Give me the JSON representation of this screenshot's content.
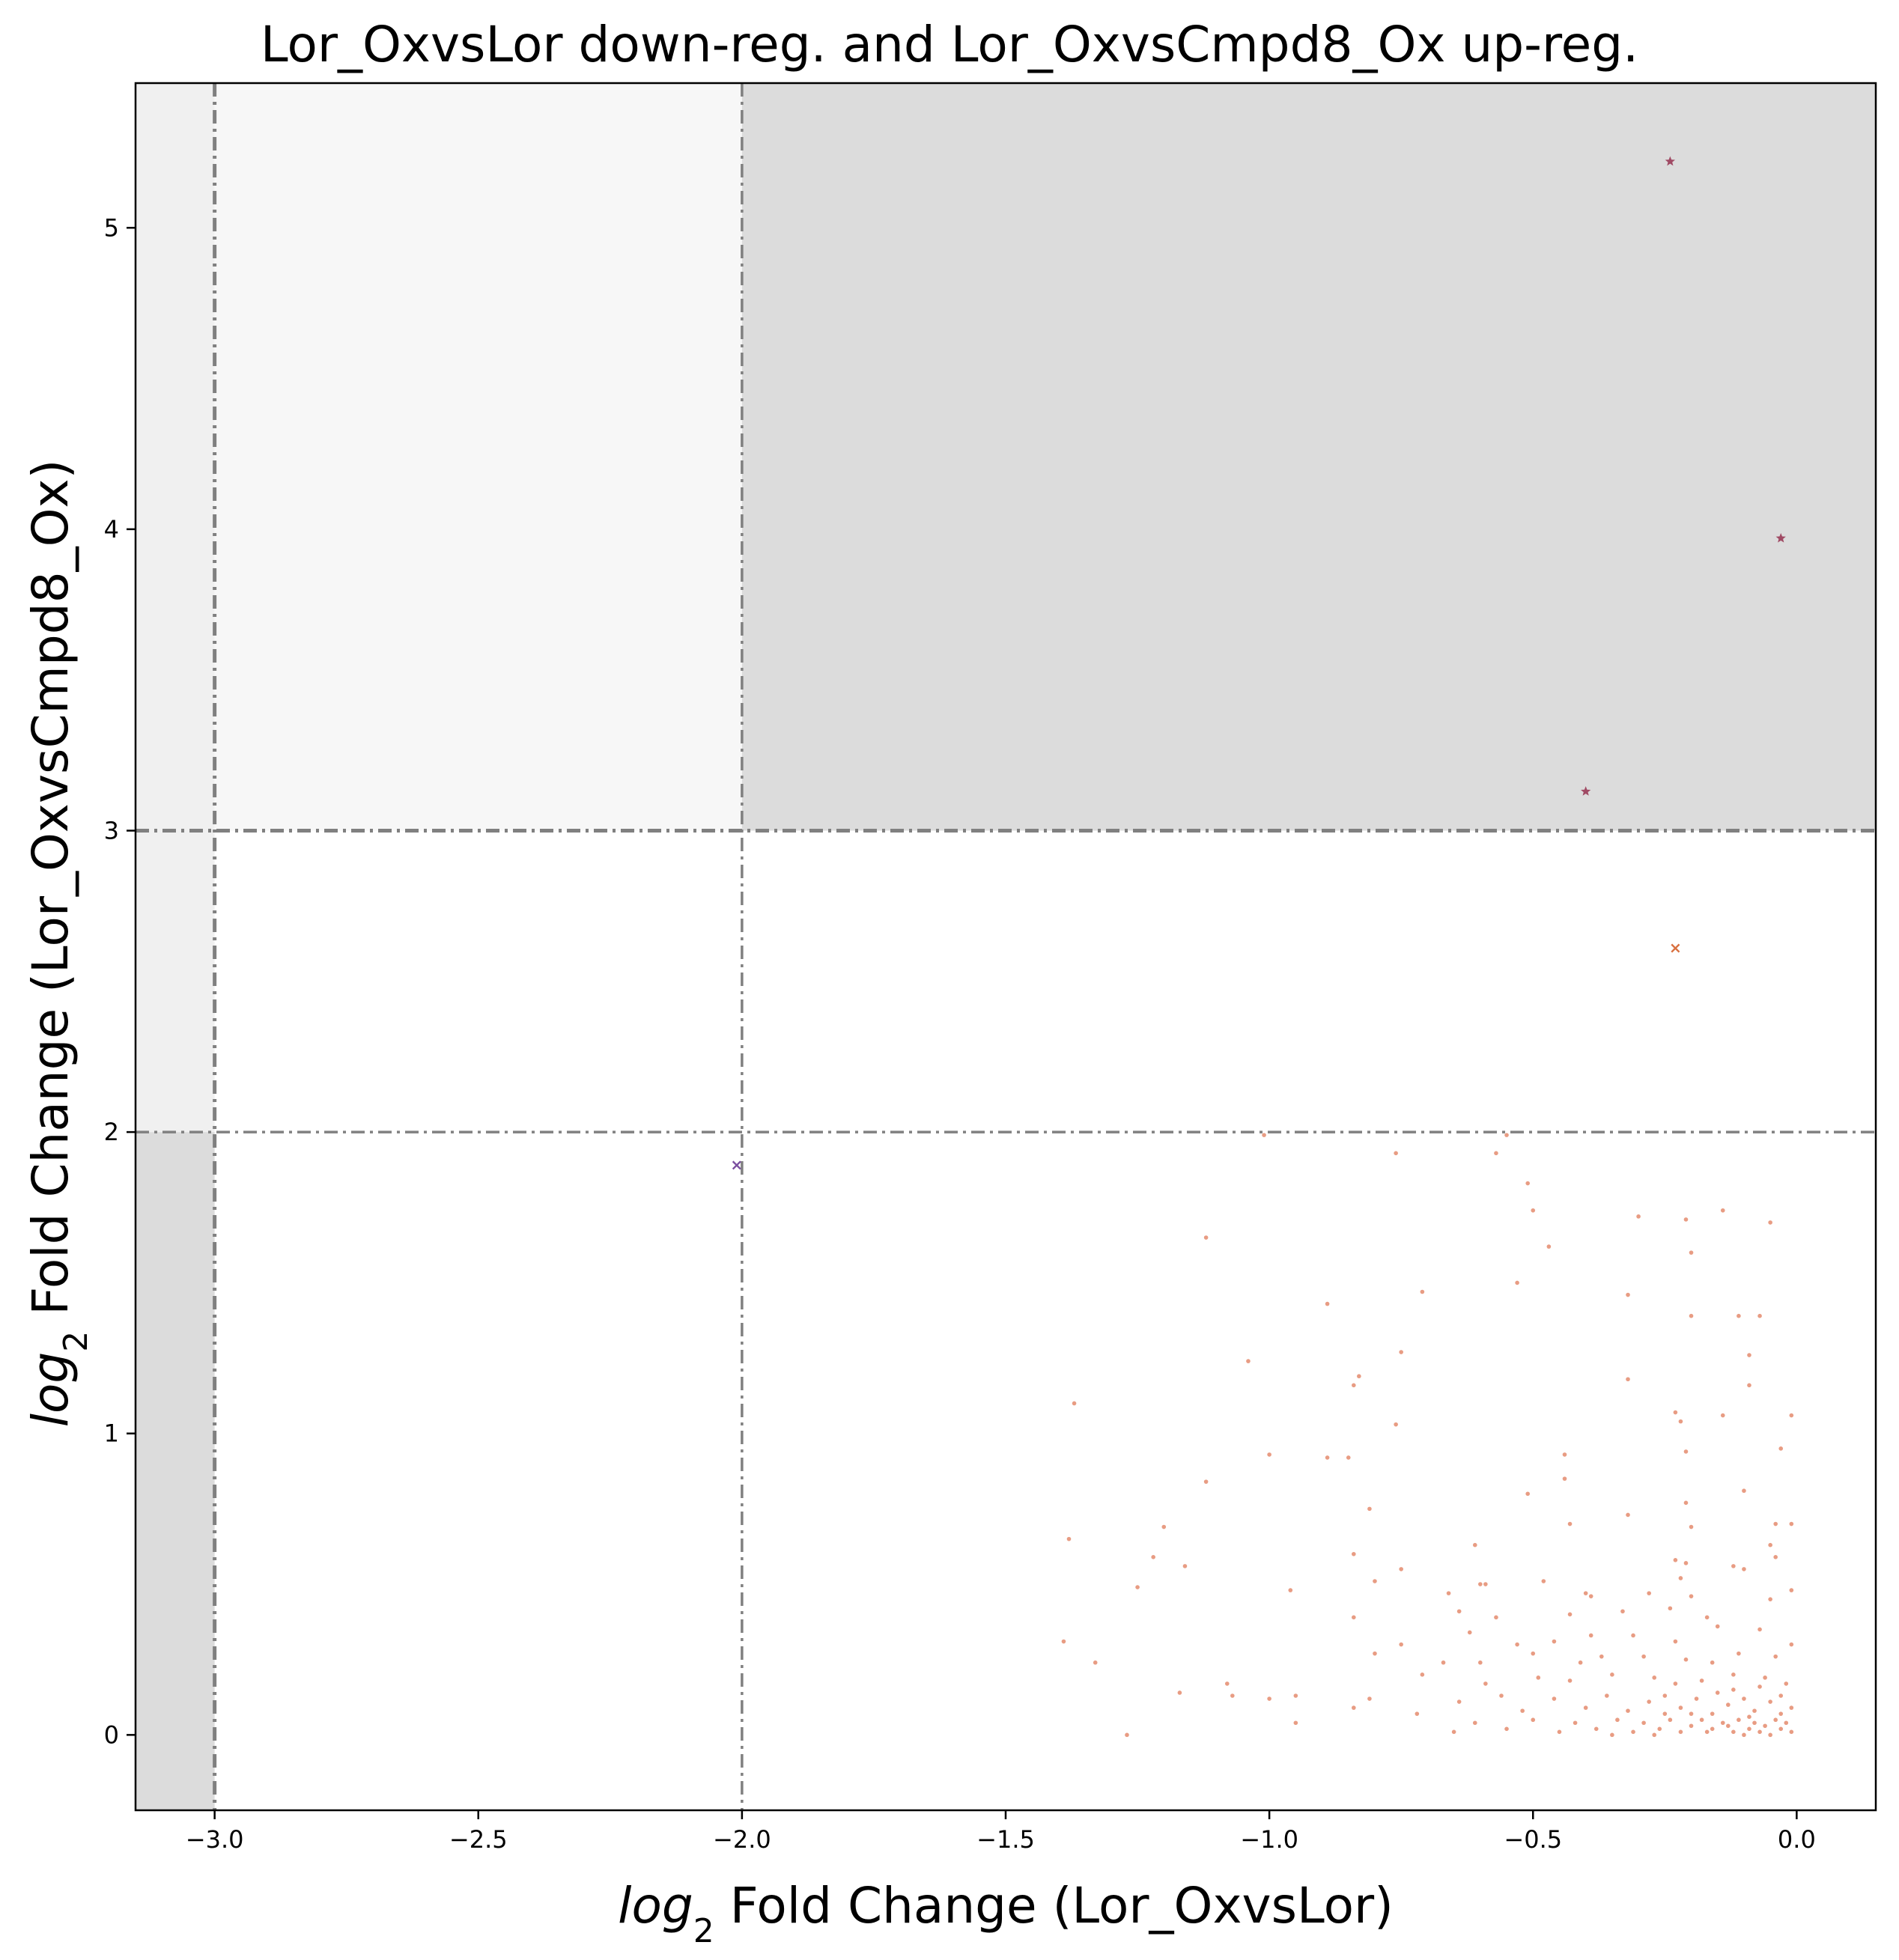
{
  "chart_data": {
    "type": "scatter",
    "title": "Lor_OxvsLor down-reg. and Lor_OxvsCmpd8_Ox up-reg.",
    "xlabel": {
      "prefix": "log",
      "sub": "2",
      "rest": " Fold Change (Lor_OxvsLor)"
    },
    "ylabel": {
      "prefix": "log",
      "sub": "2",
      "rest": " Fold Change (Lor_OxvsCmpd8_Ox)"
    },
    "xlim": [
      -3.15,
      0.15
    ],
    "ylim": [
      -0.25,
      5.48
    ],
    "x_ticks": [
      -3.0,
      -2.5,
      -2.0,
      -1.5,
      -1.0,
      -0.5,
      0.0
    ],
    "x_tick_labels": [
      "−3.0",
      "−2.5",
      "−2.0",
      "−1.5",
      "−1.0",
      "−0.5",
      "0.0"
    ],
    "y_ticks": [
      0,
      1,
      2,
      3,
      4,
      5
    ],
    "y_tick_labels": [
      "0",
      "1",
      "2",
      "3",
      "4",
      "5"
    ],
    "grid": false,
    "legend": "none",
    "threshold_lines": {
      "x": [
        -3.0,
        -2.0
      ],
      "y": [
        2.0,
        3.0
      ]
    },
    "regions": [
      {
        "x": [
          -3.15,
          -3.0
        ],
        "y": [
          -0.25,
          2.0
        ],
        "color": "#dcdcdc"
      },
      {
        "x": [
          -3.15,
          -3.0
        ],
        "y": [
          2.0,
          5.48
        ],
        "color": "#f0f0f0"
      },
      {
        "x": [
          -3.0,
          -2.0
        ],
        "y": [
          3.0,
          5.48
        ],
        "color": "#f7f7f7"
      },
      {
        "x": [
          -2.0,
          0.15
        ],
        "y": [
          3.0,
          5.48
        ],
        "color": "#dcdcdc"
      }
    ],
    "colors": {
      "dots": "#e07b5a",
      "stars": "#a04a64",
      "cross_orange": "#d9703f",
      "cross_purple": "#7b4fa0",
      "lines": "#808080"
    },
    "series": [
      {
        "marker": "star",
        "color": "#a04a64",
        "points": [
          [
            -0.24,
            5.22
          ],
          [
            -0.03,
            3.97
          ],
          [
            -0.4,
            3.13
          ]
        ]
      },
      {
        "marker": "x",
        "color": "#d9703f",
        "points": [
          [
            -0.23,
            2.61
          ]
        ]
      },
      {
        "marker": "x",
        "color": "#7b4fa0",
        "points": [
          [
            -2.01,
            1.89
          ]
        ]
      },
      {
        "marker": "dot",
        "color": "#e07b5a",
        "points": [
          [
            -1.01,
            1.99
          ],
          [
            -0.55,
            1.99
          ],
          [
            -0.76,
            1.93
          ],
          [
            -0.57,
            1.93
          ],
          [
            -0.51,
            1.83
          ],
          [
            -0.5,
            1.74
          ],
          [
            -0.3,
            1.72
          ],
          [
            -0.21,
            1.71
          ],
          [
            -0.14,
            1.74
          ],
          [
            -0.05,
            1.7
          ],
          [
            -1.12,
            1.65
          ],
          [
            -0.47,
            1.62
          ],
          [
            -0.2,
            1.6
          ],
          [
            -0.53,
            1.5
          ],
          [
            -0.71,
            1.47
          ],
          [
            -0.32,
            1.46
          ],
          [
            -0.89,
            1.43
          ],
          [
            -0.2,
            1.39
          ],
          [
            -0.11,
            1.39
          ],
          [
            -0.07,
            1.39
          ],
          [
            -0.75,
            1.27
          ],
          [
            -0.09,
            1.26
          ],
          [
            -1.04,
            1.24
          ],
          [
            -0.83,
            1.19
          ],
          [
            -0.84,
            1.16
          ],
          [
            -0.32,
            1.18
          ],
          [
            -0.09,
            1.16
          ],
          [
            -1.37,
            1.1
          ],
          [
            -0.23,
            1.07
          ],
          [
            -0.14,
            1.06
          ],
          [
            -0.22,
            1.04
          ],
          [
            -0.01,
            1.06
          ],
          [
            -0.76,
            1.03
          ],
          [
            -1.0,
            0.93
          ],
          [
            -0.89,
            0.92
          ],
          [
            -0.85,
            0.92
          ],
          [
            -0.44,
            0.93
          ],
          [
            -0.21,
            0.94
          ],
          [
            -0.03,
            0.95
          ],
          [
            -1.12,
            0.84
          ],
          [
            -0.44,
            0.85
          ],
          [
            -0.51,
            0.8
          ],
          [
            -0.1,
            0.81
          ],
          [
            -0.81,
            0.75
          ],
          [
            -0.21,
            0.77
          ],
          [
            -0.32,
            0.73
          ],
          [
            -1.2,
            0.69
          ],
          [
            -0.43,
            0.7
          ],
          [
            -0.2,
            0.69
          ],
          [
            -0.04,
            0.7
          ],
          [
            -0.01,
            0.7
          ],
          [
            -1.38,
            0.65
          ],
          [
            -0.61,
            0.63
          ],
          [
            -0.05,
            0.63
          ],
          [
            -0.04,
            0.59
          ],
          [
            -1.22,
            0.59
          ],
          [
            -0.84,
            0.6
          ],
          [
            -0.23,
            0.58
          ],
          [
            -0.21,
            0.57
          ],
          [
            -1.16,
            0.56
          ],
          [
            -0.75,
            0.55
          ],
          [
            -0.12,
            0.56
          ],
          [
            -0.1,
            0.55
          ],
          [
            -0.6,
            0.5
          ],
          [
            -0.59,
            0.5
          ],
          [
            -0.48,
            0.51
          ],
          [
            -0.22,
            0.52
          ],
          [
            -1.25,
            0.49
          ],
          [
            -0.96,
            0.48
          ],
          [
            -0.8,
            0.51
          ],
          [
            -0.66,
            0.47
          ],
          [
            -0.4,
            0.47
          ],
          [
            -0.39,
            0.46
          ],
          [
            -0.28,
            0.47
          ],
          [
            -0.2,
            0.46
          ],
          [
            -0.05,
            0.45
          ],
          [
            -0.01,
            0.48
          ],
          [
            -0.84,
            0.39
          ],
          [
            -0.64,
            0.41
          ],
          [
            -0.57,
            0.39
          ],
          [
            -0.43,
            0.4
          ],
          [
            -0.33,
            0.41
          ],
          [
            -0.24,
            0.42
          ],
          [
            -0.17,
            0.39
          ],
          [
            -1.39,
            0.31
          ],
          [
            -0.75,
            0.3
          ],
          [
            -0.62,
            0.34
          ],
          [
            -0.53,
            0.3
          ],
          [
            -0.46,
            0.31
          ],
          [
            -0.39,
            0.33
          ],
          [
            -0.31,
            0.33
          ],
          [
            -0.23,
            0.31
          ],
          [
            -0.15,
            0.36
          ],
          [
            -0.07,
            0.35
          ],
          [
            -0.01,
            0.3
          ],
          [
            -1.33,
            0.24
          ],
          [
            -0.8,
            0.27
          ],
          [
            -0.67,
            0.24
          ],
          [
            -0.6,
            0.24
          ],
          [
            -0.5,
            0.27
          ],
          [
            -0.41,
            0.24
          ],
          [
            -0.37,
            0.26
          ],
          [
            -0.29,
            0.26
          ],
          [
            -0.21,
            0.25
          ],
          [
            -0.16,
            0.24
          ],
          [
            -0.11,
            0.27
          ],
          [
            -0.04,
            0.26
          ],
          [
            -1.08,
            0.17
          ],
          [
            -0.71,
            0.2
          ],
          [
            -0.59,
            0.17
          ],
          [
            -0.49,
            0.19
          ],
          [
            -0.43,
            0.18
          ],
          [
            -0.35,
            0.2
          ],
          [
            -0.27,
            0.19
          ],
          [
            -0.23,
            0.17
          ],
          [
            -0.18,
            0.18
          ],
          [
            -0.12,
            0.2
          ],
          [
            -0.06,
            0.19
          ],
          [
            -0.02,
            0.17
          ],
          [
            -1.17,
            0.14
          ],
          [
            -1.07,
            0.13
          ],
          [
            -1.0,
            0.12
          ],
          [
            -0.95,
            0.13
          ],
          [
            -0.81,
            0.12
          ],
          [
            -0.72,
            0.07
          ],
          [
            -0.64,
            0.11
          ],
          [
            -0.56,
            0.13
          ],
          [
            -0.52,
            0.08
          ],
          [
            -0.46,
            0.12
          ],
          [
            -0.4,
            0.09
          ],
          [
            -0.36,
            0.13
          ],
          [
            -0.32,
            0.08
          ],
          [
            -0.28,
            0.11
          ],
          [
            -0.25,
            0.13
          ],
          [
            -0.22,
            0.09
          ],
          [
            -0.19,
            0.12
          ],
          [
            -0.16,
            0.07
          ],
          [
            -0.13,
            0.1
          ],
          [
            -0.1,
            0.12
          ],
          [
            -0.08,
            0.08
          ],
          [
            -0.05,
            0.11
          ],
          [
            -0.03,
            0.13
          ],
          [
            -0.01,
            0.09
          ],
          [
            -1.27,
            0.0
          ],
          [
            -0.95,
            0.04
          ],
          [
            -0.84,
            0.09
          ],
          [
            -0.65,
            0.01
          ],
          [
            -0.61,
            0.04
          ],
          [
            -0.55,
            0.02
          ],
          [
            -0.5,
            0.05
          ],
          [
            -0.45,
            0.01
          ],
          [
            -0.42,
            0.04
          ],
          [
            -0.38,
            0.02
          ],
          [
            -0.34,
            0.05
          ],
          [
            -0.31,
            0.01
          ],
          [
            -0.29,
            0.04
          ],
          [
            -0.26,
            0.02
          ],
          [
            -0.24,
            0.05
          ],
          [
            -0.22,
            0.01
          ],
          [
            -0.2,
            0.03
          ],
          [
            -0.18,
            0.05
          ],
          [
            -0.16,
            0.02
          ],
          [
            -0.14,
            0.04
          ],
          [
            -0.12,
            0.01
          ],
          [
            -0.11,
            0.05
          ],
          [
            -0.09,
            0.02
          ],
          [
            -0.08,
            0.04
          ],
          [
            -0.07,
            0.01
          ],
          [
            -0.06,
            0.03
          ],
          [
            -0.04,
            0.05
          ],
          [
            -0.03,
            0.02
          ],
          [
            -0.02,
            0.04
          ],
          [
            -0.01,
            0.01
          ],
          [
            -0.13,
            0.03
          ],
          [
            -0.1,
            0.0
          ],
          [
            -0.05,
            0.0
          ],
          [
            -0.35,
            0.0
          ],
          [
            -0.27,
            0.0
          ],
          [
            -0.17,
            0.01
          ],
          [
            -0.09,
            0.06
          ],
          [
            -0.12,
            0.15
          ],
          [
            -0.07,
            0.16
          ],
          [
            -0.25,
            0.07
          ],
          [
            -0.2,
            0.07
          ],
          [
            -0.15,
            0.14
          ],
          [
            -0.03,
            0.07
          ]
        ]
      }
    ]
  }
}
